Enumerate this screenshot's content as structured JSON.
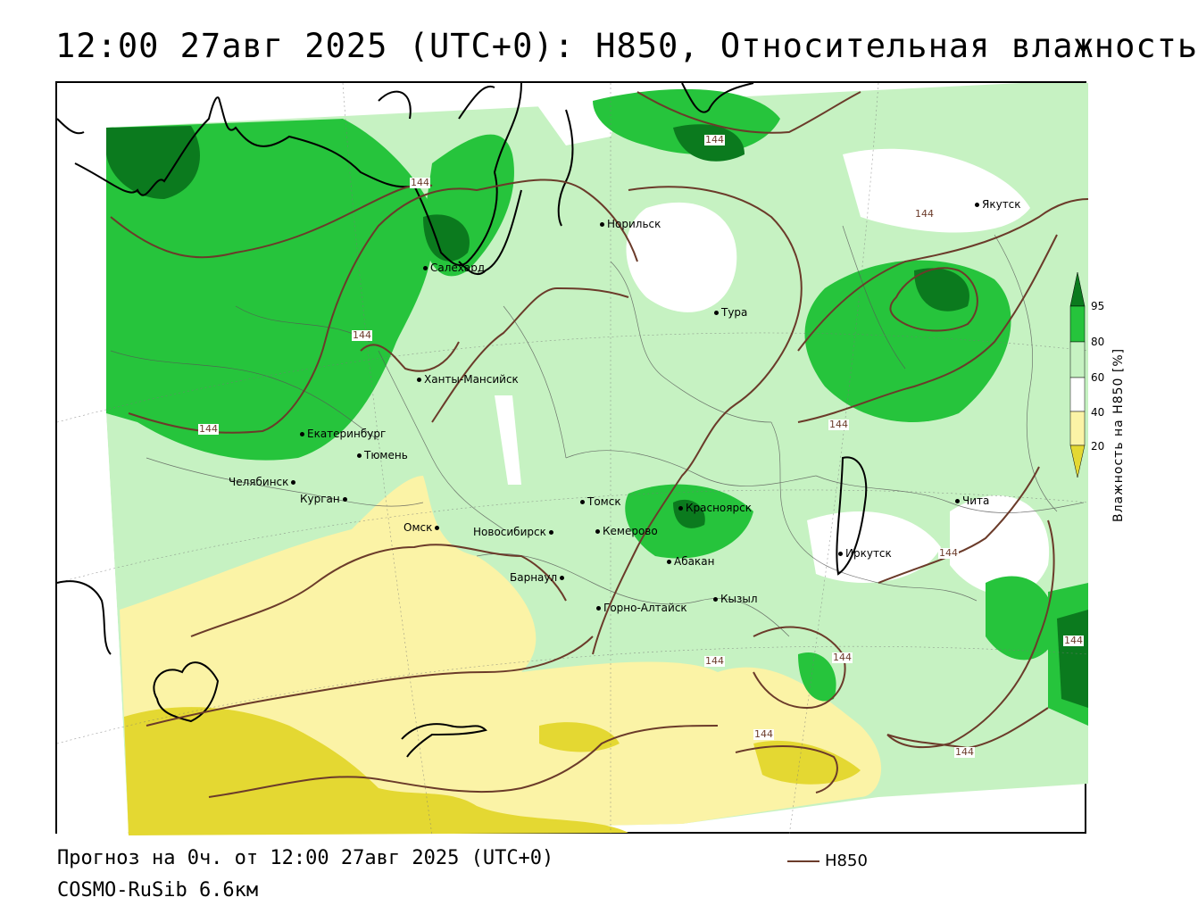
{
  "title": "12:00 27авг 2025 (UTC+0): H850, Относительная влажность",
  "footer": {
    "forecast": "Прогноз на 0ч. от 12:00 27авг 2025 (UTC+0)",
    "model": "COSMO-RuSib 6.6км"
  },
  "line_key": {
    "label": "H850",
    "color": "#6b3b2a"
  },
  "legend": {
    "title": "Влажность на H850 [%]",
    "ticks": [
      "95",
      "80",
      "60",
      "40",
      "20"
    ],
    "colors": {
      "gt95": "#0b7a1e",
      "80_95": "#26c43c",
      "60_80": "#c6f2c2",
      "40_60": "#ffffff",
      "20_40": "#fbf3a6",
      "lt20": "#e4d832"
    }
  },
  "contour_label": "144",
  "cities": [
    {
      "name": "Якутск"
    },
    {
      "name": "Норильск"
    },
    {
      "name": "Салехард"
    },
    {
      "name": "Тура"
    },
    {
      "name": "Ханты-Мансийск"
    },
    {
      "name": "Екатеринбург"
    },
    {
      "name": "Тюмень"
    },
    {
      "name": "Челябинск"
    },
    {
      "name": "Курган"
    },
    {
      "name": "Омск"
    },
    {
      "name": "Новосибирск"
    },
    {
      "name": "Томск"
    },
    {
      "name": "Кемерово"
    },
    {
      "name": "Красноярск"
    },
    {
      "name": "Абакан"
    },
    {
      "name": "Барнаул"
    },
    {
      "name": "Горно-Алтайск"
    },
    {
      "name": "Кызыл"
    },
    {
      "name": "Иркутск"
    },
    {
      "name": "Чита"
    }
  ]
}
